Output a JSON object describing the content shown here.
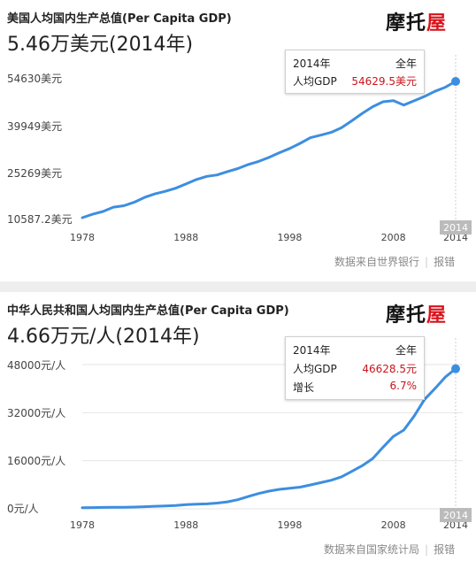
{
  "logo": {
    "part1": "摩托",
    "part2": "屋"
  },
  "colors": {
    "line": "#3d8ee0",
    "value_red": "#c8161d",
    "grid": "#e4e4e4",
    "year_badge": "#bbbbbb"
  },
  "chart_data": [
    {
      "type": "line",
      "title": "美国人均国内生产总值(Per Capita GDP)",
      "headline": "5.46万美元(2014年)",
      "x": [
        1978,
        1979,
        1980,
        1981,
        1982,
        1983,
        1984,
        1985,
        1986,
        1987,
        1988,
        1989,
        1990,
        1991,
        1992,
        1993,
        1994,
        1995,
        1996,
        1997,
        1998,
        1999,
        2000,
        2001,
        2002,
        2003,
        2004,
        2005,
        2006,
        2007,
        2008,
        2009,
        2010,
        2011,
        2012,
        2013,
        2014
      ],
      "series": [
        {
          "values": [
            10587.2,
            11695.8,
            12597.7,
            13993.2,
            14438.1,
            15561.4,
            17134.3,
            18269.4,
            19115.1,
            20100.9,
            21483.2,
            22922.4,
            23954.5,
            24405.2,
            25492.9,
            26464.8,
            27776.6,
            28782.2,
            30068.2,
            31572.7,
            32949.2,
            34620.9,
            36449.9,
            37273.6,
            38166.0,
            39677.2,
            41921.8,
            44307.9,
            46437.1,
            48061.5,
            48401.4,
            47001.6,
            48374.1,
            49781.8,
            51433.0,
            52749.9,
            54629.5
          ]
        }
      ],
      "xticks": [
        "1978",
        "1988",
        "1998",
        "2008",
        "2014"
      ],
      "yticks": [
        "10587.2美元",
        "25269美元",
        "39949美元",
        "54630美元"
      ],
      "ytick_values": [
        10587.2,
        25269,
        39949,
        54630
      ],
      "ylim": [
        10587.2,
        54630
      ],
      "xlim": [
        1978,
        2014
      ],
      "grid": false,
      "highlight_year": "2014",
      "tooltip": {
        "year": "2014年",
        "period": "全年",
        "rows": [
          {
            "label": "人均GDP",
            "value": "54629.5美元"
          }
        ]
      },
      "source": "数据来自世界银行",
      "report": "报错"
    },
    {
      "type": "line",
      "title": "中华人民共和国人均国内生产总值(Per Capita GDP)",
      "headline": "4.66万元/人(2014年)",
      "x": [
        1978,
        1979,
        1980,
        1981,
        1982,
        1983,
        1984,
        1985,
        1986,
        1987,
        1988,
        1989,
        1990,
        1991,
        1992,
        1993,
        1994,
        1995,
        1996,
        1997,
        1998,
        1999,
        2000,
        2001,
        2002,
        2003,
        2004,
        2005,
        2006,
        2007,
        2008,
        2009,
        2010,
        2011,
        2012,
        2013,
        2014
      ],
      "series": [
        {
          "values": [
            385,
            423,
            468,
            497,
            533,
            588,
            702,
            866,
            973,
            1123,
            1378,
            1536,
            1663,
            1912,
            2334,
            3027,
            4081,
            5091,
            5898,
            6481,
            6860,
            7229,
            7942,
            8717,
            9506,
            10666,
            12487,
            14368,
            16738,
            20505,
            24121,
            26222,
            30876,
            36403,
            40007,
            43852,
            46628.5
          ]
        }
      ],
      "xticks": [
        "1978",
        "1988",
        "1998",
        "2008",
        "2014"
      ],
      "yticks": [
        "0元/人",
        "16000元/人",
        "32000元/人",
        "48000元/人"
      ],
      "ytick_values": [
        0,
        16000,
        32000,
        48000
      ],
      "ylim": [
        0,
        48000
      ],
      "xlim": [
        1978,
        2014
      ],
      "grid": true,
      "highlight_year": "2014",
      "tooltip": {
        "year": "2014年",
        "period": "全年",
        "rows": [
          {
            "label": "人均GDP",
            "value": "46628.5元"
          },
          {
            "label": "增长",
            "value": "6.7%"
          }
        ]
      },
      "source": "数据来自国家统计局",
      "report": "报错"
    }
  ]
}
